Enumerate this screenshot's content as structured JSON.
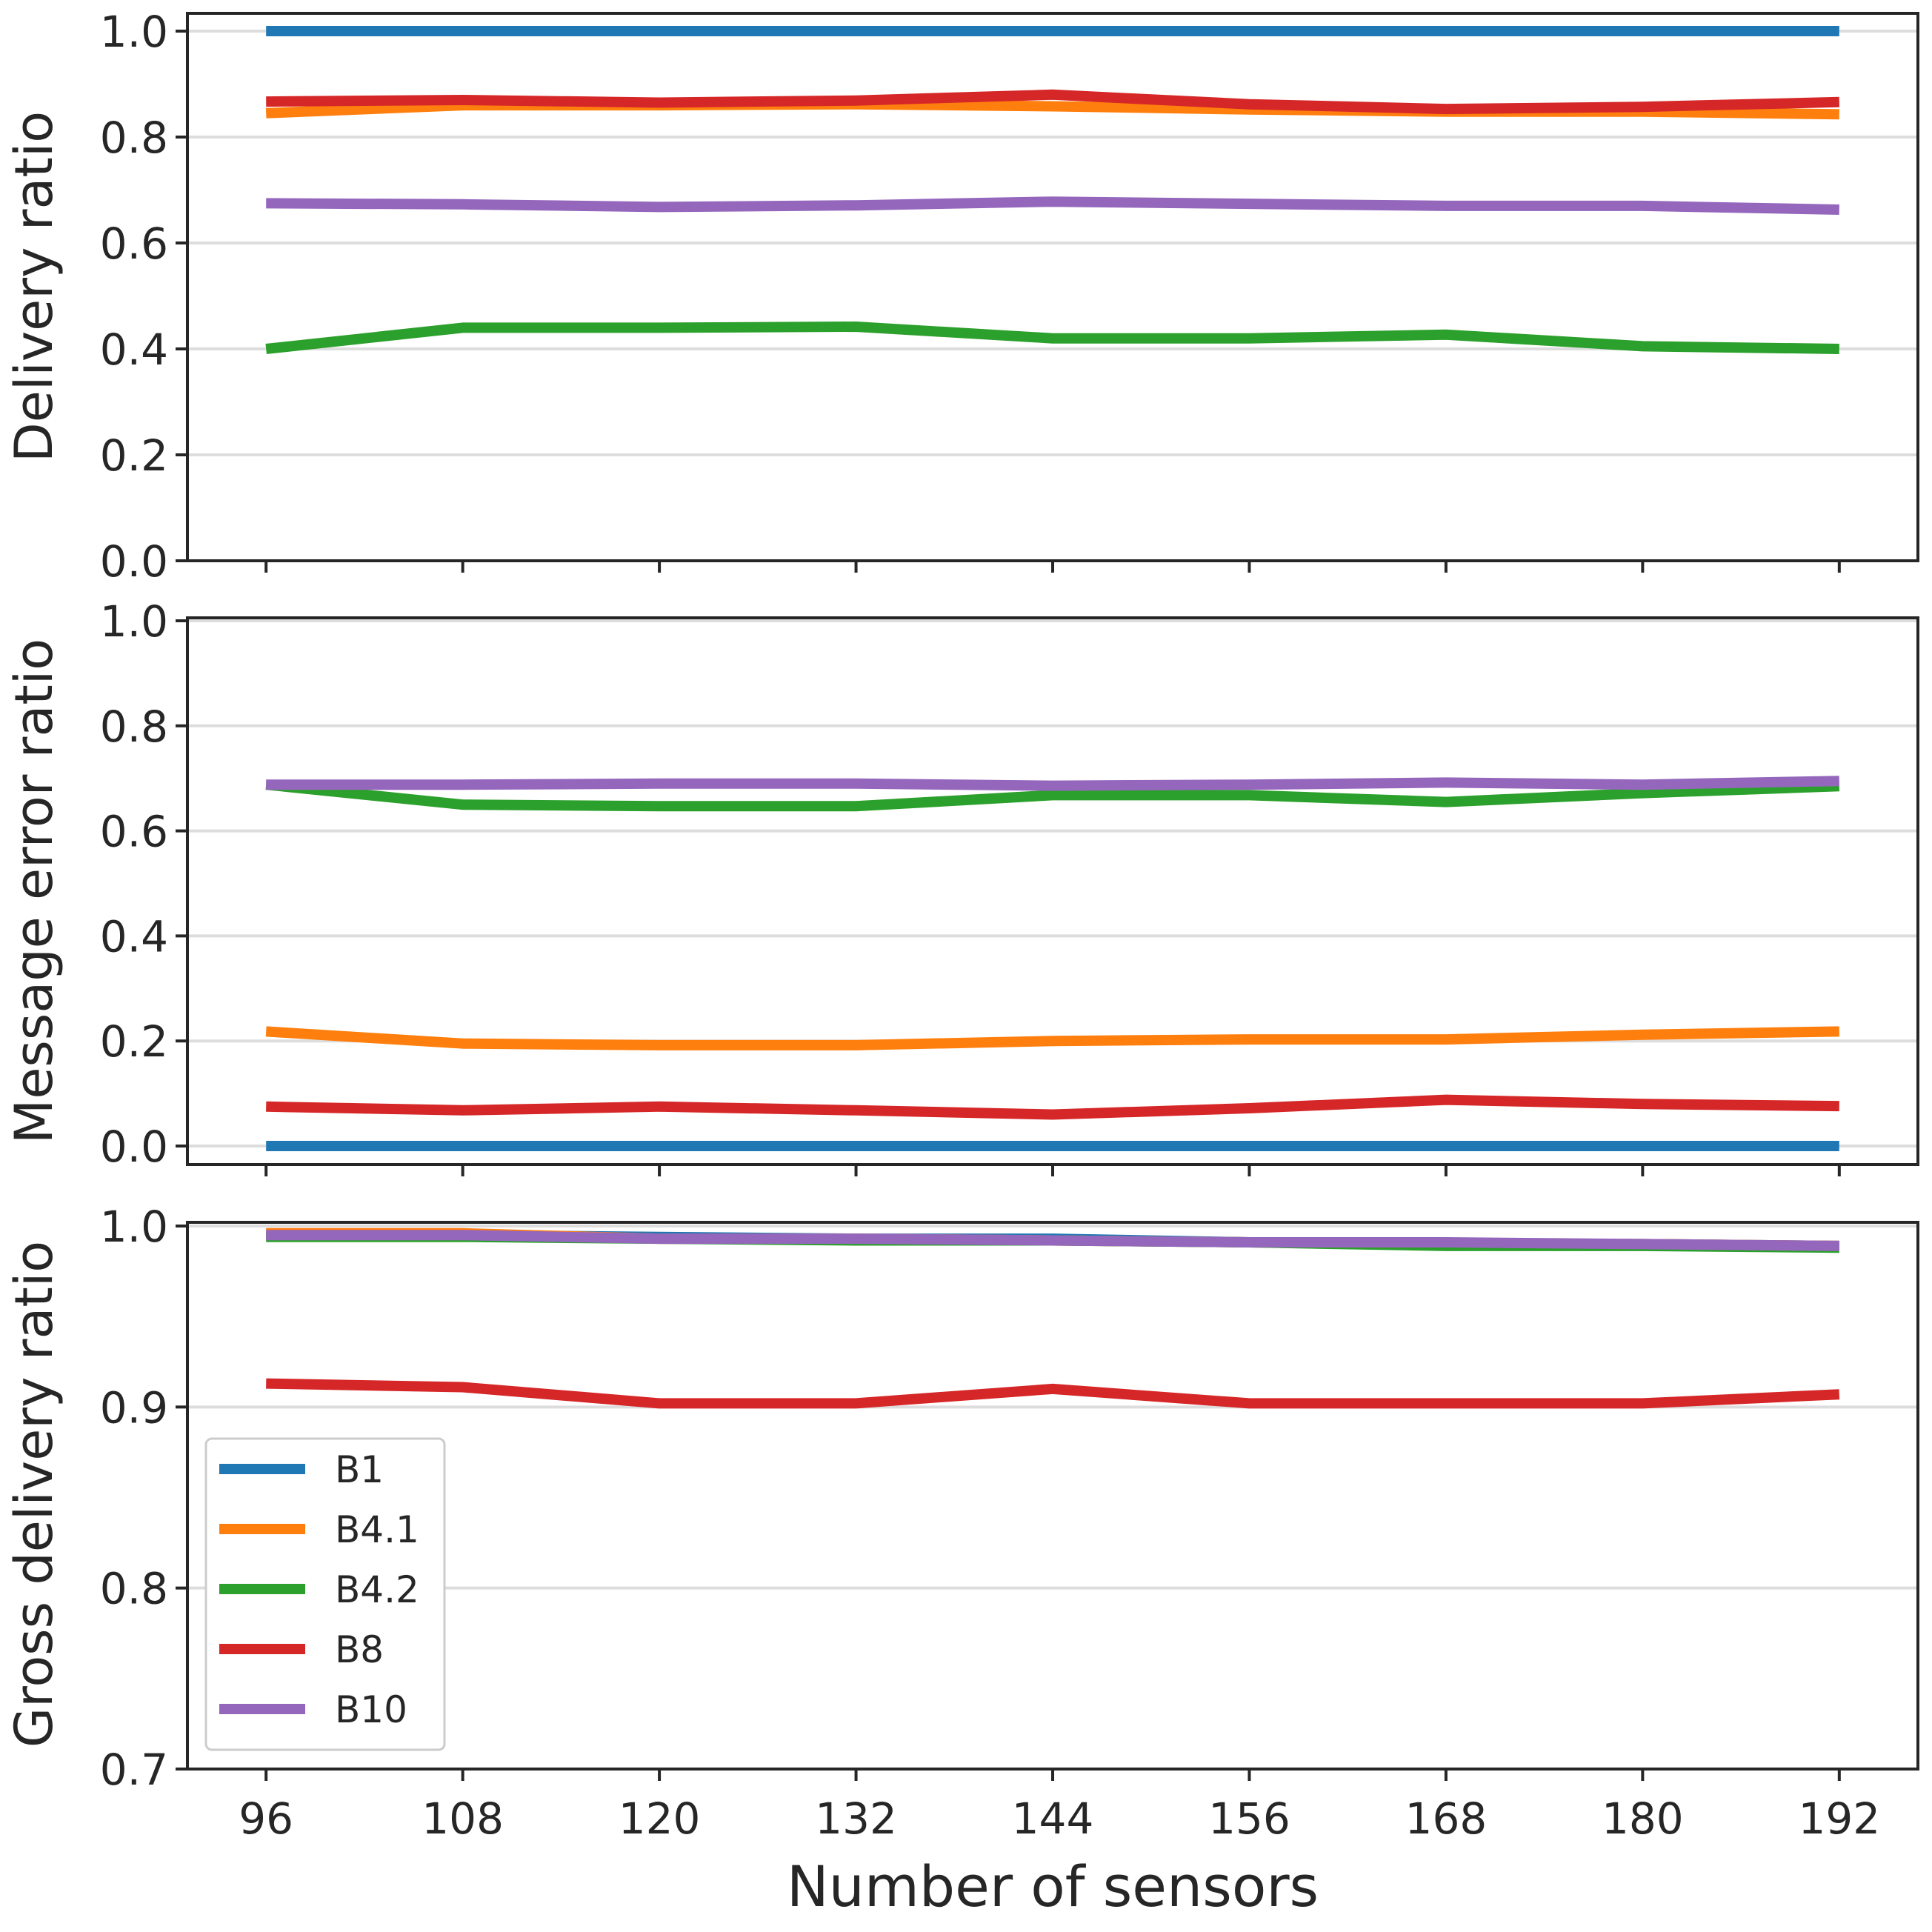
{
  "chart_data": {
    "type": "line",
    "xlabel": "Number of sensors",
    "x": [
      96,
      108,
      120,
      132,
      144,
      156,
      168,
      180,
      192
    ],
    "x_ticks": [
      "96",
      "108",
      "120",
      "132",
      "144",
      "156",
      "168",
      "180",
      "192"
    ],
    "xlim": [
      91.2,
      196.8
    ],
    "legend": {
      "placement": "lower-left of bottom panel",
      "entries": [
        "B1",
        "B4.1",
        "B4.2",
        "B8",
        "B10"
      ]
    },
    "series_colors": {
      "B1": "#1f77b4",
      "B4.1": "#ff7f0e",
      "B4.2": "#2ca02c",
      "B8": "#d62728",
      "B10": "#9467bd"
    },
    "panels": [
      {
        "ylabel": "Delivery ratio",
        "ylim": [
          0.0,
          1.0
        ],
        "y_ticks": [
          "0.0",
          "0.2",
          "0.4",
          "0.6",
          "0.8",
          "1.0"
        ],
        "y_tick_values": [
          0.0,
          0.2,
          0.4,
          0.6,
          0.8,
          1.0
        ],
        "grid": true,
        "series": [
          {
            "name": "B1",
            "values": [
              1.0,
              1.0,
              1.0,
              1.0,
              1.0,
              1.0,
              1.0,
              1.0,
              1.0
            ]
          },
          {
            "name": "B4.1",
            "values": [
              0.845,
              0.86,
              0.86,
              0.862,
              0.858,
              0.852,
              0.848,
              0.848,
              0.843
            ]
          },
          {
            "name": "B4.2",
            "values": [
              0.4,
              0.44,
              0.44,
              0.442,
              0.42,
              0.42,
              0.427,
              0.405,
              0.4
            ]
          },
          {
            "name": "B8",
            "values": [
              0.867,
              0.87,
              0.865,
              0.869,
              0.88,
              0.862,
              0.853,
              0.857,
              0.866
            ]
          },
          {
            "name": "B10",
            "values": [
              0.675,
              0.673,
              0.668,
              0.671,
              0.678,
              0.674,
              0.67,
              0.67,
              0.663
            ]
          }
        ]
      },
      {
        "ylabel": "Message error ratio",
        "ylim": [
          0.0,
          1.0
        ],
        "y_ticks": [
          "0.0",
          "0.2",
          "0.4",
          "0.6",
          "0.8",
          "1.0"
        ],
        "y_tick_values": [
          0.0,
          0.2,
          0.4,
          0.6,
          0.8,
          1.0
        ],
        "grid": true,
        "series": [
          {
            "name": "B1",
            "values": [
              0.0,
              0.0,
              0.0,
              0.0,
              0.0,
              0.0,
              0.0,
              0.0,
              0.0
            ]
          },
          {
            "name": "B4.1",
            "values": [
              0.218,
              0.195,
              0.192,
              0.192,
              0.2,
              0.203,
              0.203,
              0.212,
              0.218
            ]
          },
          {
            "name": "B4.2",
            "values": [
              0.688,
              0.65,
              0.647,
              0.647,
              0.668,
              0.668,
              0.655,
              0.672,
              0.685
            ]
          },
          {
            "name": "B8",
            "values": [
              0.075,
              0.068,
              0.075,
              0.068,
              0.06,
              0.072,
              0.088,
              0.08,
              0.076
            ]
          },
          {
            "name": "B10",
            "values": [
              0.688,
              0.688,
              0.69,
              0.69,
              0.686,
              0.688,
              0.692,
              0.688,
              0.695
            ]
          }
        ]
      },
      {
        "ylabel": "Gross delivery ratio",
        "ylim": [
          0.7,
          1.0
        ],
        "y_ticks": [
          "0.7",
          "0.8",
          "0.9",
          "1.0"
        ],
        "y_tick_values": [
          0.7,
          0.8,
          0.9,
          1.0
        ],
        "grid": true,
        "series": [
          {
            "name": "B1",
            "values": [
              0.995,
              0.995,
              0.994,
              0.993,
              0.993,
              0.991,
              0.99,
              0.99,
              0.989
            ]
          },
          {
            "name": "B4.1",
            "values": [
              0.996,
              0.996,
              0.993,
              0.993,
              0.992,
              0.991,
              0.99,
              0.99,
              0.989
            ]
          },
          {
            "name": "B4.2",
            "values": [
              0.994,
              0.994,
              0.993,
              0.992,
              0.992,
              0.991,
              0.989,
              0.989,
              0.988
            ]
          },
          {
            "name": "B8",
            "values": [
              0.913,
              0.911,
              0.902,
              0.902,
              0.91,
              0.902,
              0.902,
              0.902,
              0.907
            ]
          },
          {
            "name": "B10",
            "values": [
              0.995,
              0.995,
              0.993,
              0.993,
              0.992,
              0.991,
              0.991,
              0.99,
              0.989
            ]
          }
        ]
      }
    ]
  }
}
